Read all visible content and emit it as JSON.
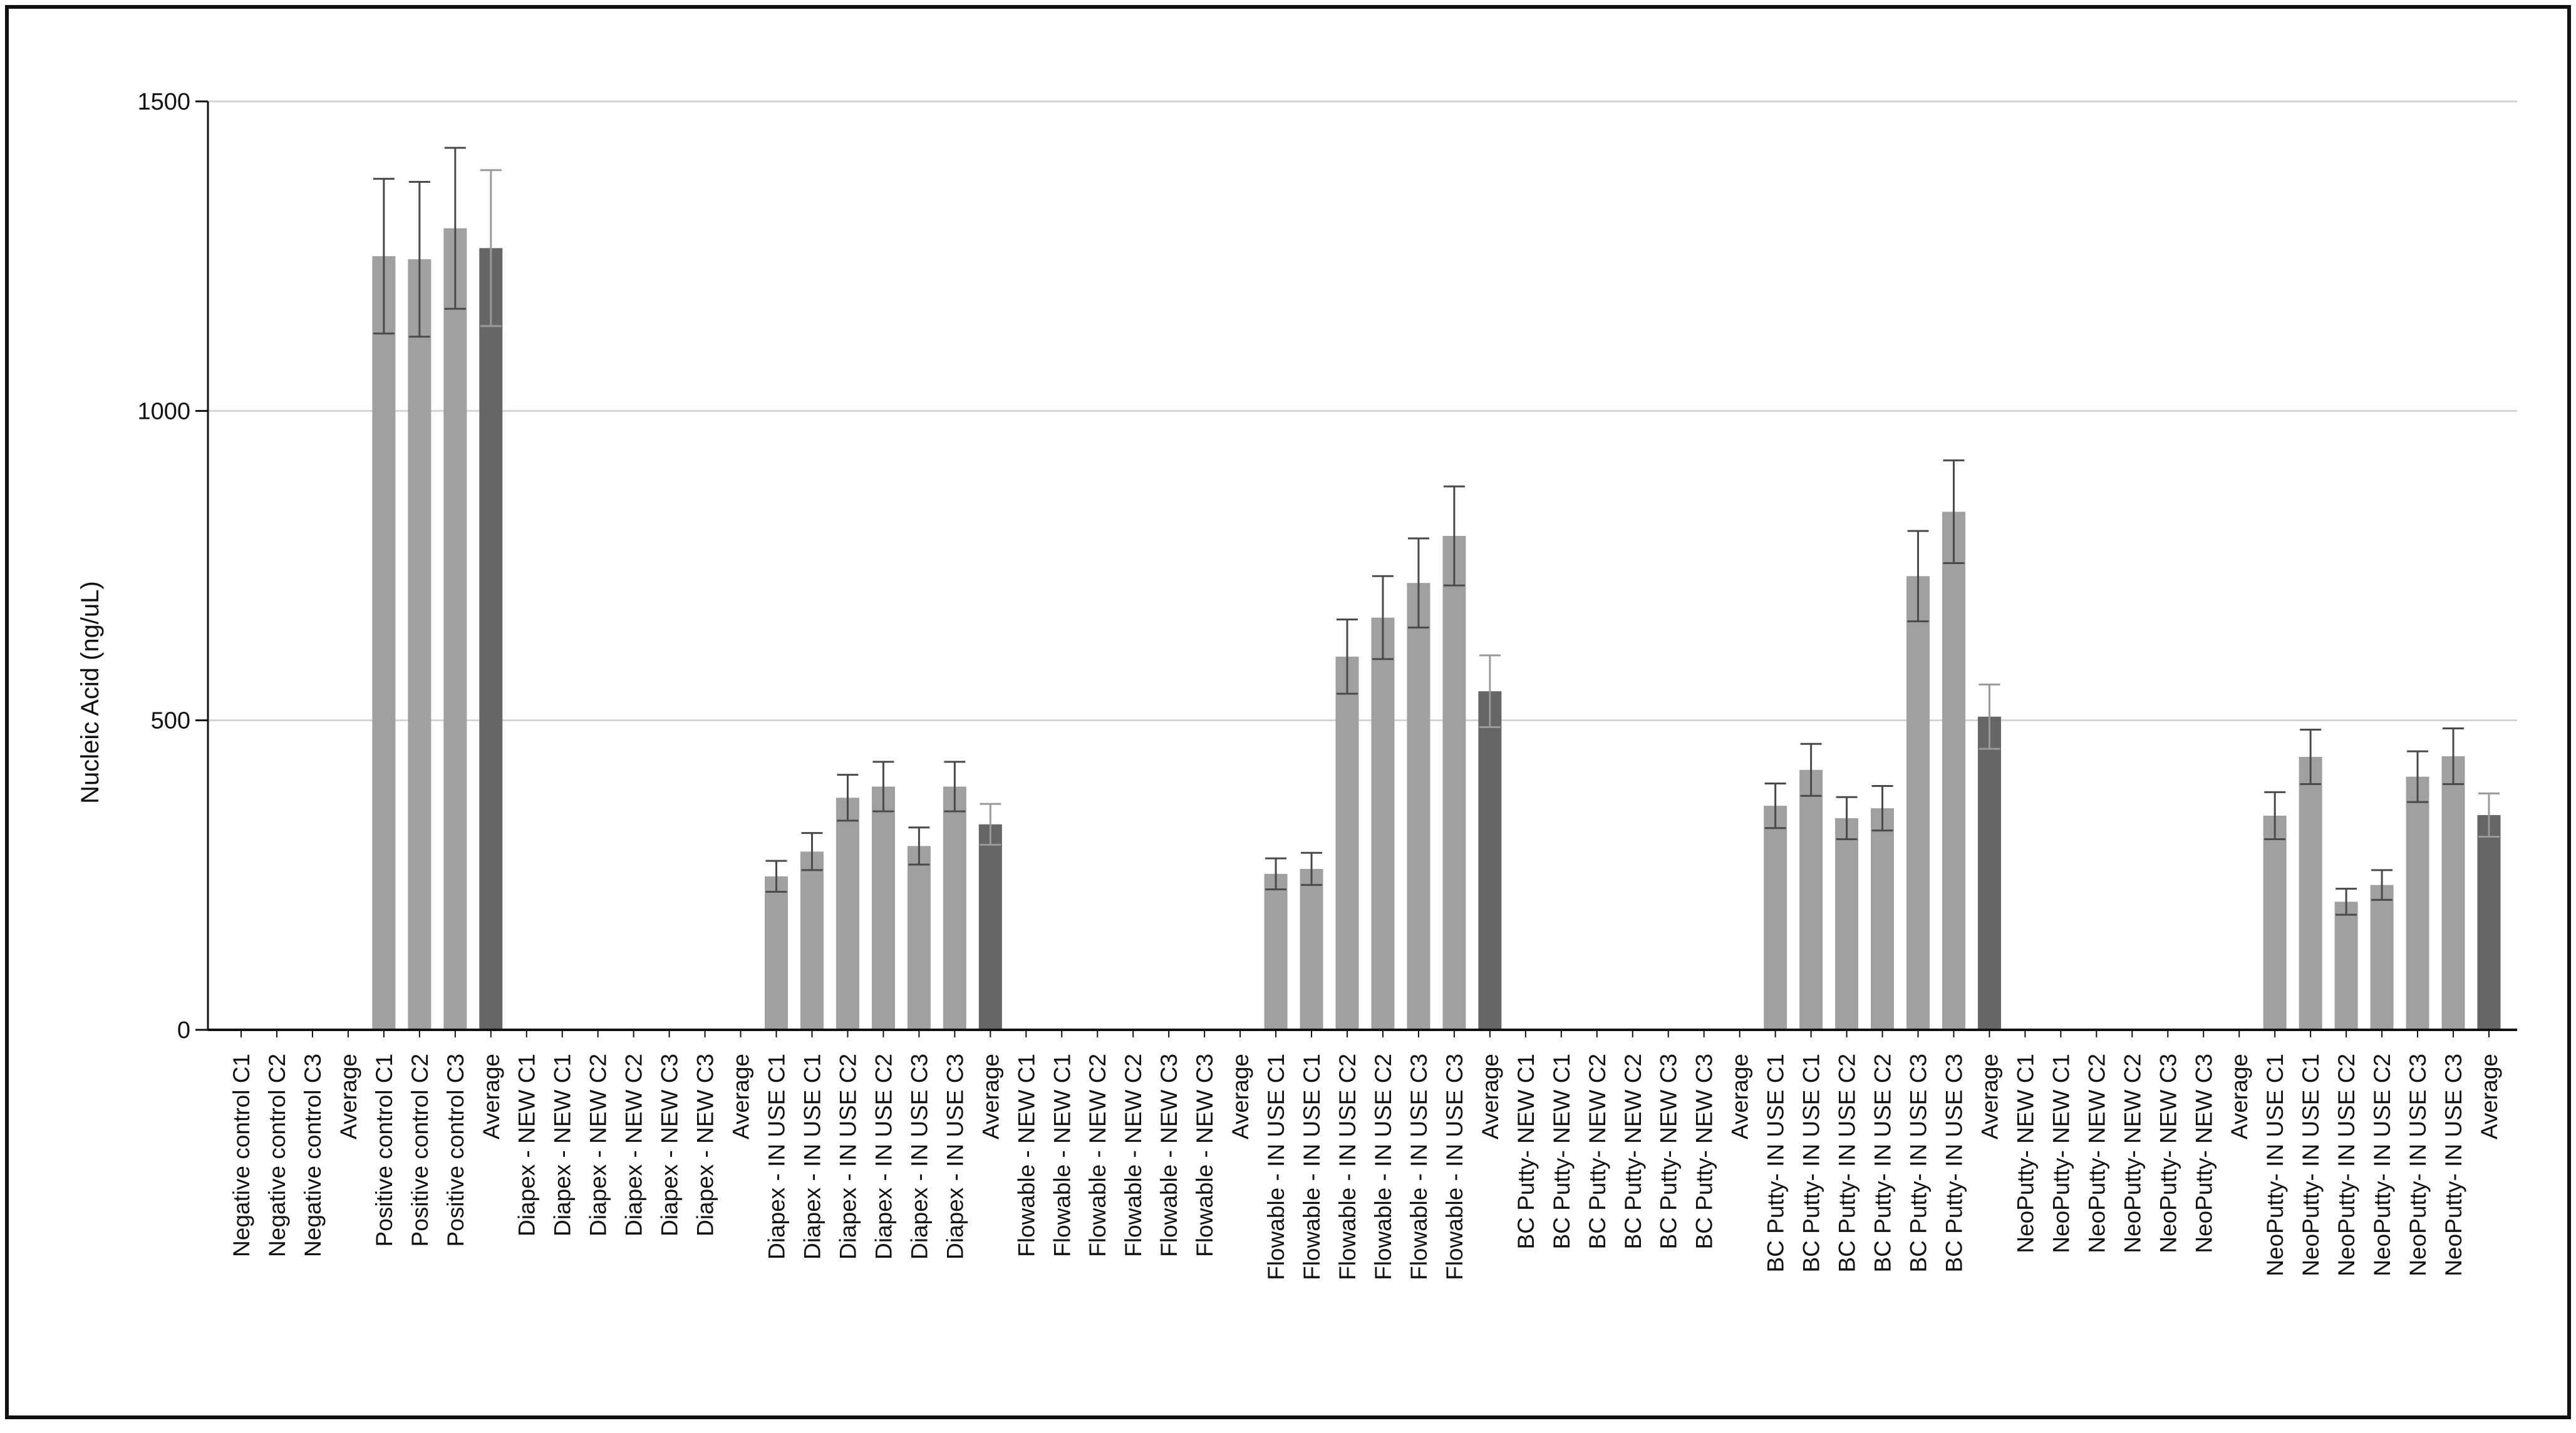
{
  "chart_data": {
    "type": "bar",
    "title": "",
    "xlabel": "",
    "ylabel": "Nucleic Acid (ng/uL)",
    "ylim": [
      0,
      1500
    ],
    "yticks": [
      0,
      500,
      1000,
      1500
    ],
    "grid": "horizontal",
    "legend": "none",
    "colors": {
      "bar": "#a0a0a0",
      "average_bar": "#666666",
      "error_bar": "#4a4a4a",
      "average_error_bar": "#9a9a9a",
      "grid": "#d4d4d4",
      "axis": "#111111"
    },
    "categories": [
      "Negative control C1",
      "Negative control C2",
      "Negative control C3",
      "Average",
      "Positive control C1",
      "Positive control C2",
      "Positive control C3",
      "Average",
      "Diapex - NEW C1",
      "Diapex - NEW C1",
      "Diapex - NEW C2",
      "Diapex - NEW C2",
      "Diapex - NEW C3",
      "Diapex - NEW C3",
      "Average",
      "Diapex - IN USE C1",
      "Diapex - IN USE C1",
      "Diapex - IN USE C2",
      "Diapex - IN USE C2",
      "Diapex - IN USE C3",
      "Diapex - IN USE C3",
      "Average",
      "Flowable - NEW C1",
      "Flowable - NEW C1",
      "Flowable - NEW C2",
      "Flowable - NEW C2",
      "Flowable - NEW C3",
      "Flowable - NEW C3",
      "Average",
      "Flowable - IN USE C1",
      "Flowable - IN USE C1",
      "Flowable - IN USE C2",
      "Flowable - IN USE C2",
      "Flowable - IN USE C3",
      "Flowable - IN USE C3",
      "Average",
      "BC Putty- NEW C1",
      "BC Putty- NEW C1",
      "BC Putty- NEW C2",
      "BC Putty- NEW C2",
      "BC Putty- NEW C3",
      "BC Putty- NEW C3",
      "Average",
      "BC Putty- IN USE C1",
      "BC Putty- IN USE C1",
      "BC Putty- IN USE C2",
      "BC Putty- IN USE C2",
      "BC Putty- IN USE C3",
      "BC Putty- IN USE C3",
      "Average",
      "NeoPutty- NEW C1",
      "NeoPutty- NEW C1",
      "NeoPutty- NEW C2",
      "NeoPutty- NEW C2",
      "NeoPutty- NEW C3",
      "NeoPutty- NEW C3",
      "Average",
      "NeoPutty- IN USE C1",
      "NeoPutty- IN USE C1",
      "NeoPutty- IN USE C2",
      "NeoPutty- IN USE C2",
      "NeoPutty- IN USE C3",
      "NeoPutty- IN USE C3",
      "Average"
    ],
    "values": [
      0,
      0,
      0,
      0,
      1250,
      1245,
      1295,
      1263,
      0,
      0,
      0,
      0,
      0,
      0,
      0,
      248,
      288,
      375,
      393,
      297,
      393,
      332,
      0,
      0,
      0,
      0,
      0,
      0,
      0,
      252,
      260,
      603,
      666,
      722,
      798,
      547,
      0,
      0,
      2,
      2,
      0,
      0,
      1,
      362,
      420,
      342,
      358,
      733,
      837,
      506,
      0,
      0,
      0,
      2,
      0,
      0,
      0,
      346,
      441,
      207,
      234,
      409,
      442,
      347
    ],
    "errors": [
      0,
      0,
      0,
      0,
      125,
      125,
      130,
      126,
      0,
      0,
      0,
      0,
      0,
      0,
      0,
      25,
      30,
      37,
      40,
      30,
      40,
      33,
      0,
      0,
      0,
      0,
      0,
      0,
      0,
      25,
      26,
      60,
      67,
      72,
      80,
      58,
      0,
      0,
      0,
      0,
      0,
      0,
      0,
      36,
      42,
      34,
      36,
      73,
      83,
      52,
      0,
      0,
      0,
      0,
      0,
      0,
      0,
      38,
      44,
      21,
      24,
      41,
      45,
      35
    ]
  }
}
